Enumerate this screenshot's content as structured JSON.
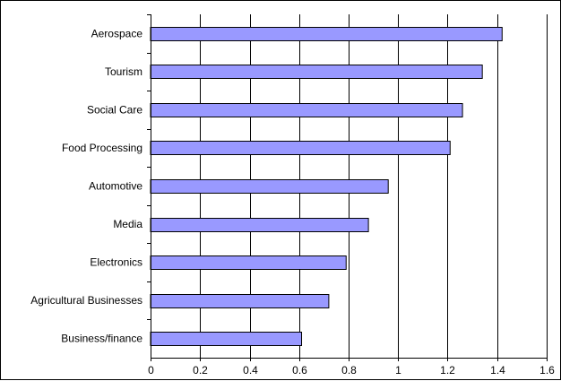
{
  "chart_data": {
    "type": "bar",
    "orientation": "horizontal",
    "title": "",
    "xlabel": "",
    "ylabel": "",
    "categories": [
      "Aerospace",
      "Tourism",
      "Social Care",
      "Food Processing",
      "Automotive",
      "Media",
      "Electronics",
      "Agricultural Businesses",
      "Business/finance"
    ],
    "values": [
      1.42,
      1.34,
      1.26,
      1.21,
      0.96,
      0.88,
      0.79,
      0.72,
      0.61
    ],
    "xlim": [
      0,
      1.6
    ],
    "x_ticks": [
      "0",
      "0.2",
      "0.4",
      "0.6",
      "0.8",
      "1",
      "1.2",
      "1.4",
      "1.6"
    ],
    "grid": "vertical",
    "legend": "none",
    "bar_color": "#9999ff",
    "bar_edge_color": "#000000"
  }
}
